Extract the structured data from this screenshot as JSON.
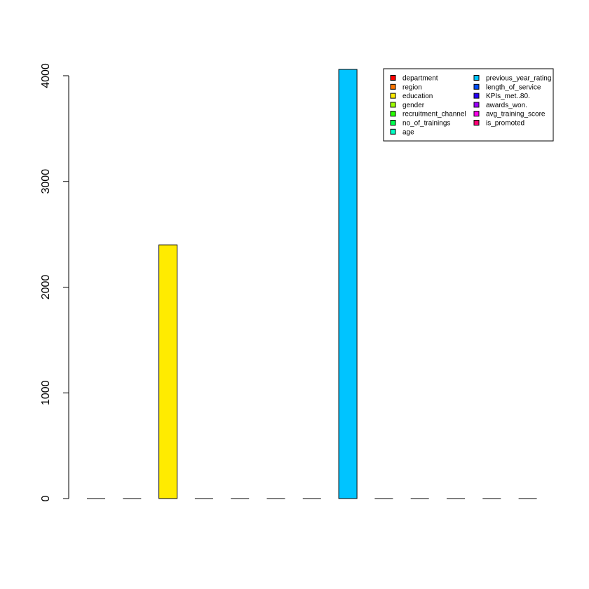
{
  "chart_data": {
    "type": "bar",
    "title": "",
    "xlabel": "",
    "ylabel": "",
    "ylim": [
      0,
      4000
    ],
    "yticks": [
      0,
      1000,
      2000,
      3000,
      4000
    ],
    "categories": [
      "department",
      "region",
      "education",
      "gender",
      "recruitment_channel",
      "no_of_trainings",
      "age",
      "previous_year_rating",
      "length_of_service",
      "KPIs_met..80.",
      "awards_won.",
      "avg_training_score",
      "is_promoted"
    ],
    "values": [
      0,
      0,
      2400,
      0,
      0,
      0,
      0,
      4060,
      0,
      0,
      0,
      0,
      0
    ],
    "colors": [
      "#FF0000",
      "#FF7600",
      "#FFEB00",
      "#9DFF00",
      "#27FF00",
      "#00FF4E",
      "#00FFC4",
      "#00C4FF",
      "#004EFF",
      "#2700FF",
      "#9D00FF",
      "#FF00EB",
      "#FF0076"
    ],
    "legend": {
      "position": "top-right",
      "entries": [
        "department",
        "region",
        "education",
        "gender",
        "recruitment_channel",
        "no_of_trainings",
        "age",
        "previous_year_rating",
        "length_of_service",
        "KPIs_met..80.",
        "awards_won.",
        "avg_training_score",
        "is_promoted"
      ]
    },
    "grid": false
  }
}
